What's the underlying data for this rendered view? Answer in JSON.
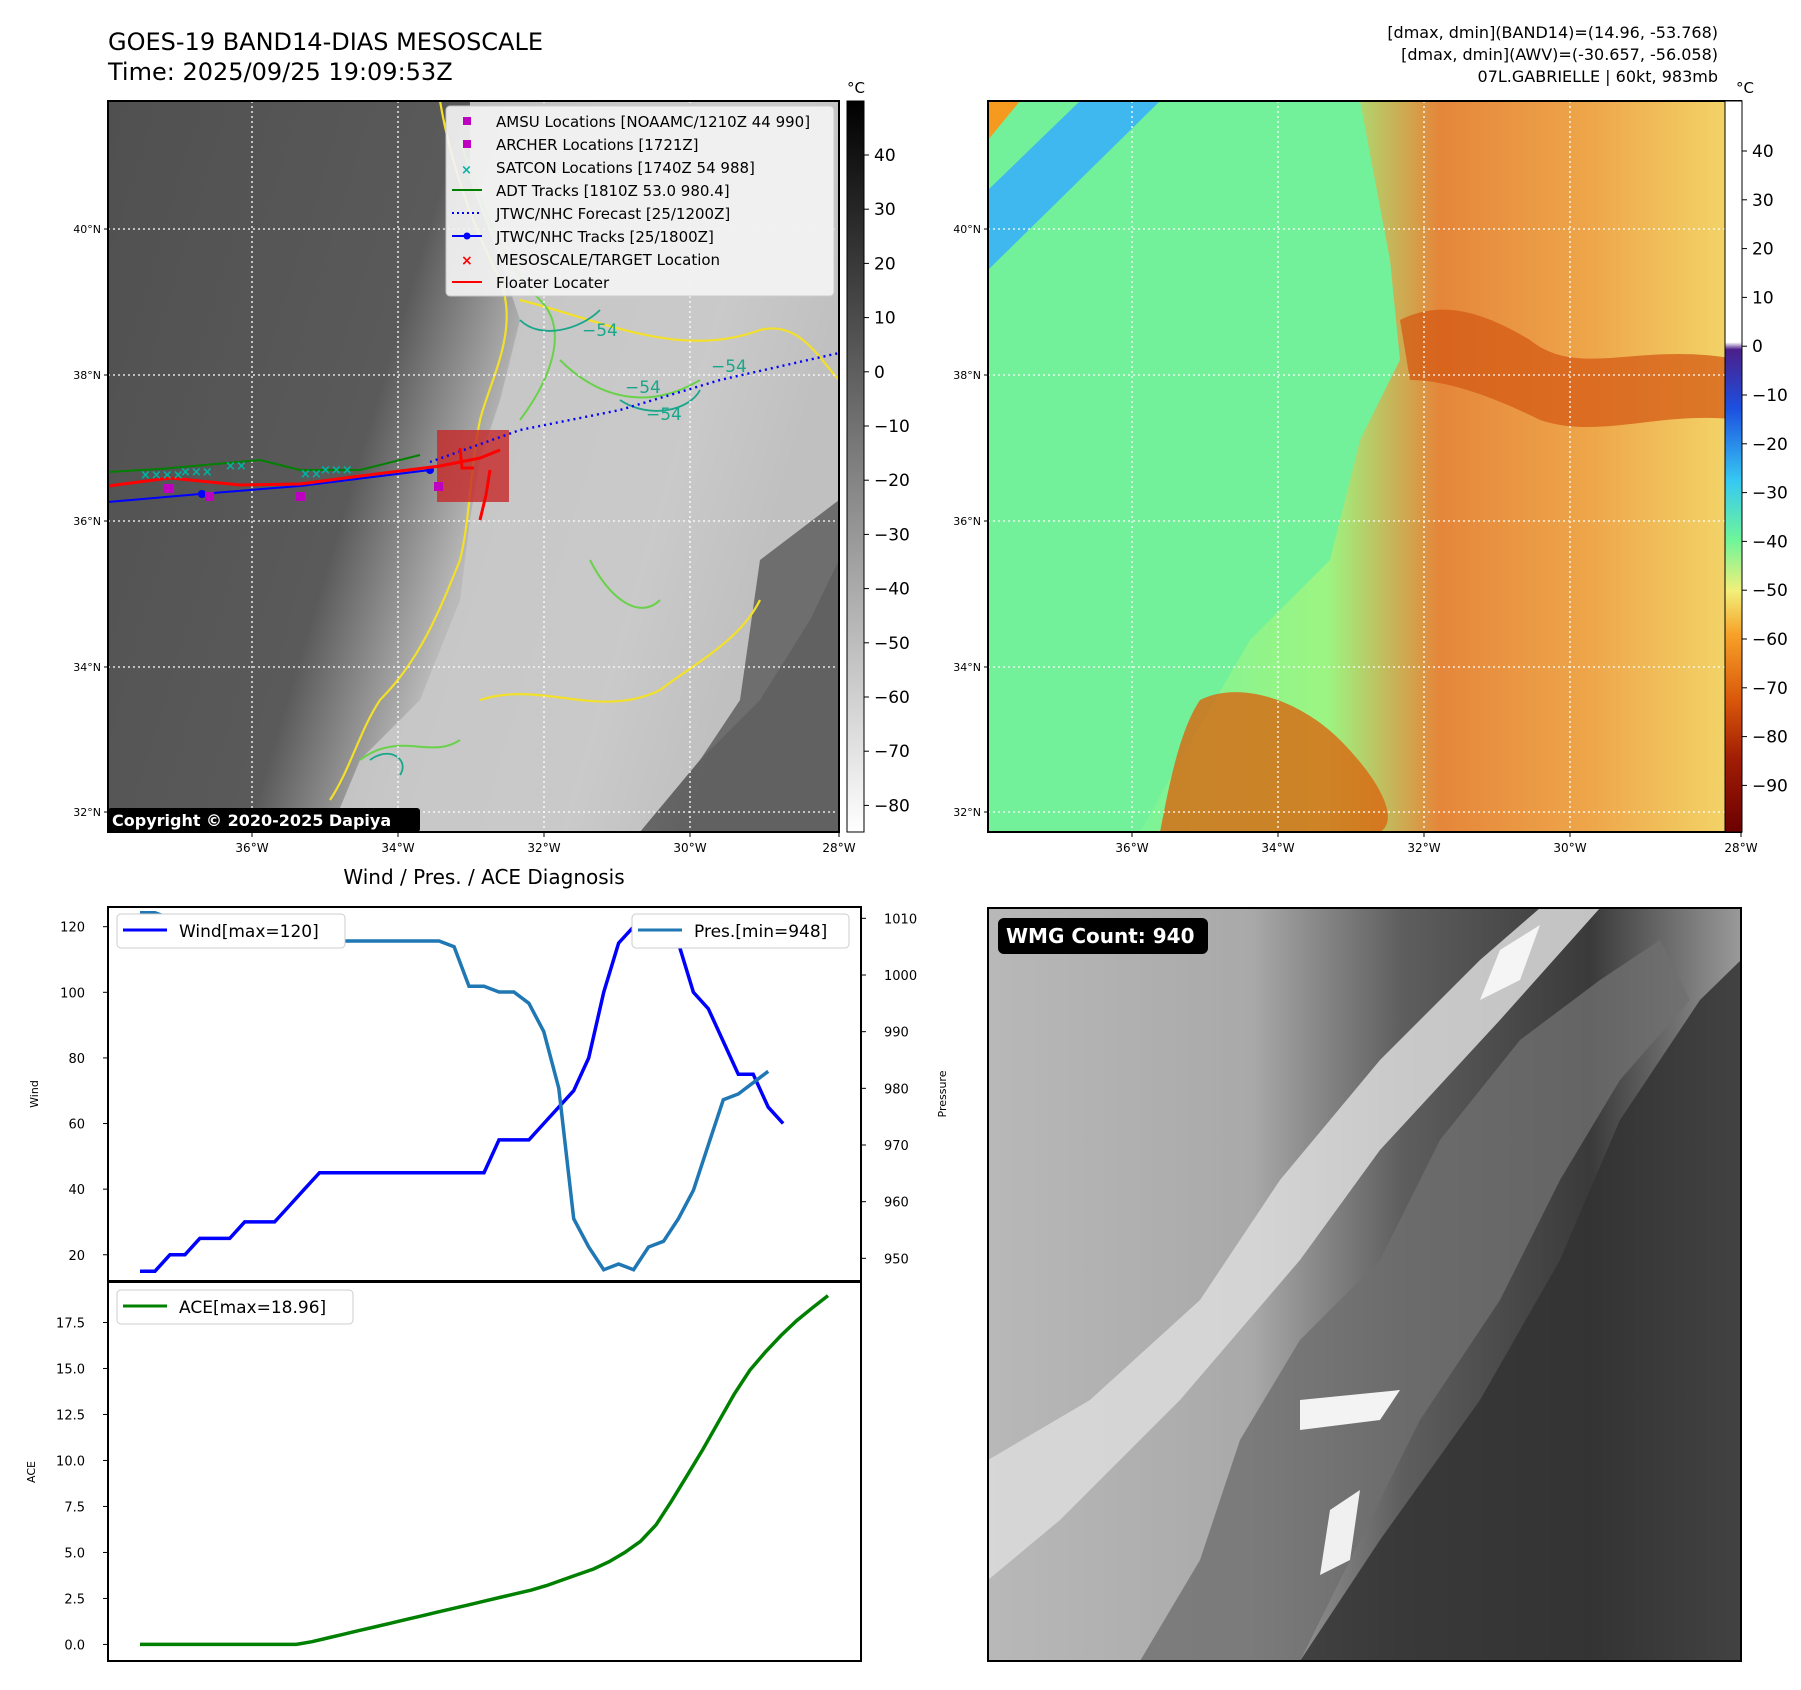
{
  "header": {
    "title_line1": "GOES-19 BAND14-DIAS MESOSCALE",
    "title_line2": "Time: 2025/09/25 19:09:53Z",
    "stats_line1": "[dmax, dmin](BAND14)=(14.96, -53.768)",
    "stats_line2": "[dmax, dmin](AWV)=(-30.657, -56.058)",
    "stats_line3": "07L.GABRIELLE | 60kt, 983mb"
  },
  "map_axes": {
    "lat_labels": [
      "40°N",
      "38°N",
      "36°N",
      "34°N",
      "32°N"
    ],
    "lon_labels": [
      "36°W",
      "34°W",
      "32°W",
      "30°W",
      "28°W"
    ]
  },
  "ir_panel": {
    "copyright": "Copyright © 2020-2025 Dapiya",
    "contour_labels": [
      "−54",
      "−54",
      "−54",
      "−54"
    ],
    "legend": [
      {
        "label": "AMSU Locations [NOAAMC/1210Z 44 990]",
        "marker": "square",
        "color": "#c000c0"
      },
      {
        "label": "ARCHER Locations [1721Z]",
        "marker": "square",
        "color": "#c000c0"
      },
      {
        "label": "SATCON Locations [1740Z 54 988]",
        "marker": "x",
        "color": "#00b3a4"
      },
      {
        "label": "ADT Tracks [1810Z 53.0 980.4]",
        "marker": "line",
        "color": "#008000"
      },
      {
        "label": "JTWC/NHC Forecast [25/1200Z]",
        "marker": "dotted",
        "color": "#0000ff"
      },
      {
        "label": "JTWC/NHC Tracks [25/1800Z]",
        "marker": "line-dot",
        "color": "#0000ff"
      },
      {
        "label": "MESOSCALE/TARGET Location",
        "marker": "x",
        "color": "#ff0000"
      },
      {
        "label": "Floater Locater",
        "marker": "line",
        "color": "#ff0000"
      }
    ],
    "colorbar": {
      "unit": "°C",
      "ticks": [
        "40",
        "30",
        "20",
        "10",
        "0",
        "−10",
        "−20",
        "−30",
        "−40",
        "−50",
        "−60",
        "−70",
        "−80"
      ]
    }
  },
  "wv_panel": {
    "colorbar": {
      "unit": "°C",
      "ticks": [
        "40",
        "30",
        "20",
        "10",
        "0",
        "−10",
        "−20",
        "−30",
        "−40",
        "−50",
        "−60",
        "−70",
        "−80",
        "−90"
      ]
    }
  },
  "chart_data": [
    {
      "type": "line",
      "title": "Wind / Pres. / ACE Diagnosis",
      "ylabel": "Wind",
      "y2label": "Pressure",
      "ylim": [
        12,
        126
      ],
      "y2lim": [
        946,
        1012
      ],
      "yticks": [
        "20",
        "40",
        "60",
        "80",
        "100",
        "120"
      ],
      "y2ticks": [
        "950",
        "960",
        "970",
        "980",
        "990",
        "1000",
        "1010"
      ],
      "x": [
        0,
        1,
        2,
        3,
        4,
        5,
        6,
        7,
        8,
        9,
        10,
        11,
        12,
        13,
        14,
        15,
        16,
        17,
        18,
        19,
        20,
        21,
        22,
        23,
        24,
        25,
        26,
        27,
        28,
        29,
        30,
        31,
        32,
        33,
        34,
        35,
        36,
        37,
        38,
        39,
        40,
        41,
        42,
        43,
        44,
        45,
        46
      ],
      "series": [
        {
          "name": "Wind[max=120]",
          "color": "#0000ff",
          "axis": "left",
          "values": [
            15,
            15,
            20,
            20,
            25,
            25,
            25,
            30,
            30,
            30,
            35,
            40,
            45,
            45,
            45,
            45,
            45,
            45,
            45,
            45,
            45,
            45,
            45,
            45,
            55,
            55,
            55,
            60,
            65,
            70,
            80,
            100,
            115,
            120,
            120,
            120,
            115,
            100,
            95,
            85,
            75,
            75,
            65,
            60,
            null,
            null,
            null
          ]
        },
        {
          "name": "Pres.[min=948]",
          "color": "#1f77b4",
          "axis": "right",
          "values": [
            1011,
            1011,
            1010,
            1010,
            1009,
            1009,
            1008,
            1008,
            1008,
            1007,
            1007,
            1006,
            1006,
            1006,
            1006,
            1006,
            1006,
            1006,
            1006,
            1006,
            1006,
            1005,
            998,
            998,
            997,
            997,
            995,
            990,
            980,
            957,
            952,
            948,
            949,
            948,
            952,
            953,
            957,
            962,
            970,
            978,
            979,
            981,
            983,
            null,
            null,
            null,
            null
          ]
        }
      ]
    },
    {
      "type": "line",
      "ylabel": "ACE",
      "ylim": [
        -0.9,
        19.7
      ],
      "yticks": [
        "0.0",
        "2.5",
        "5.0",
        "7.5",
        "10.0",
        "12.5",
        "15.0",
        "17.5"
      ],
      "x": [
        0,
        1,
        2,
        3,
        4,
        5,
        6,
        7,
        8,
        9,
        10,
        11,
        12,
        13,
        14,
        15,
        16,
        17,
        18,
        19,
        20,
        21,
        22,
        23,
        24,
        25,
        26,
        27,
        28,
        29,
        30,
        31,
        32,
        33,
        34,
        35,
        36,
        37,
        38,
        39,
        40,
        41,
        42,
        43,
        44
      ],
      "series": [
        {
          "name": "ACE[max=18.96]",
          "color": "#008000",
          "values": [
            0,
            0,
            0,
            0,
            0,
            0,
            0,
            0,
            0,
            0,
            0,
            0.15,
            0.35,
            0.55,
            0.75,
            0.95,
            1.15,
            1.35,
            1.55,
            1.75,
            1.95,
            2.15,
            2.35,
            2.55,
            2.75,
            2.95,
            3.2,
            3.5,
            3.8,
            4.1,
            4.5,
            5.0,
            5.6,
            6.5,
            7.8,
            9.2,
            10.6,
            12.1,
            13.6,
            14.9,
            15.9,
            16.8,
            17.6,
            18.3,
            18.96
          ]
        }
      ]
    }
  ],
  "wmg_panel": {
    "badge": "WMG Count: 940"
  }
}
